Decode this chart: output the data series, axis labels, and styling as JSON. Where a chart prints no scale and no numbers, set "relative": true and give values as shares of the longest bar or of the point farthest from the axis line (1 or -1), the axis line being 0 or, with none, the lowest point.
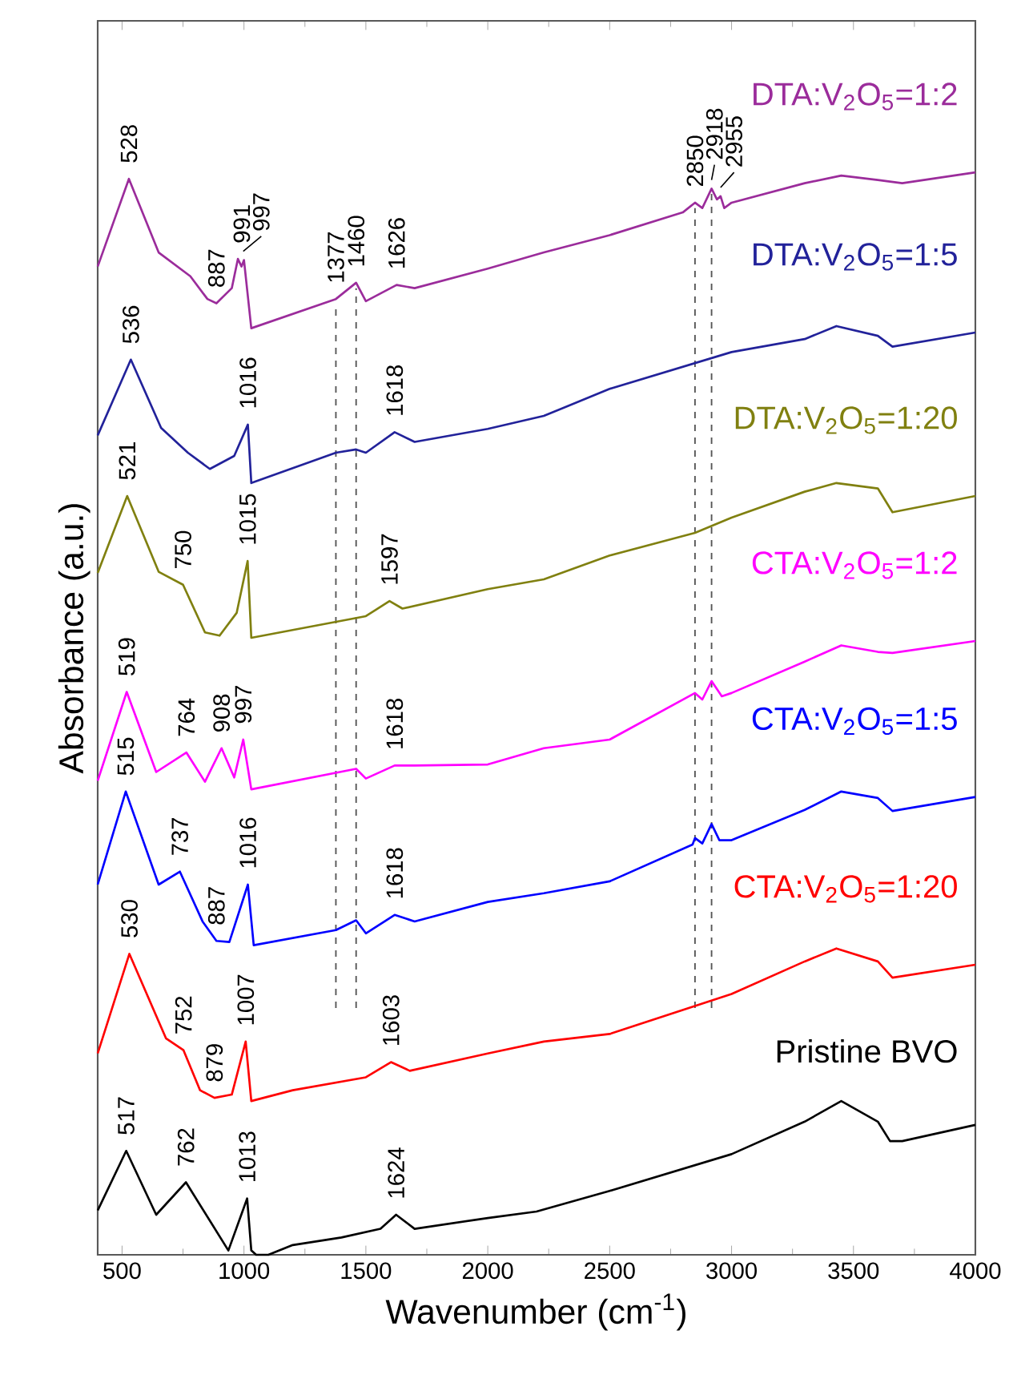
{
  "chart_data": {
    "type": "line",
    "relative": true,
    "xlabel": "Wavenumber (cm$^{-1}$)",
    "ylabel": "Absorbance (a.u.)",
    "xlim": [
      400,
      4000
    ],
    "xticks": [
      500,
      1000,
      1500,
      2000,
      2500,
      3000,
      3500,
      4000
    ],
    "series": [
      {
        "name": "DTA:V$_{2}$O$_{5}$=1:2",
        "color": "#9b2c9b",
        "x": [
          400,
          528,
          650,
          780,
          850,
          887,
          950,
          975,
          990,
          1000,
          1030,
          1377,
          1460,
          1500,
          1626,
          1700,
          2000,
          2230,
          2500,
          2800,
          2850,
          2880,
          2918,
          2940,
          2955,
          2970,
          3000,
          3300,
          3450,
          3600,
          3700,
          4000
        ],
        "values": [
          0.913,
          0.994,
          0.926,
          0.904,
          0.883,
          0.879,
          0.893,
          0.92,
          0.913,
          0.919,
          0.856,
          0.883,
          0.898,
          0.881,
          0.896,
          0.893,
          0.911,
          0.926,
          0.942,
          0.963,
          0.972,
          0.967,
          0.985,
          0.975,
          0.978,
          0.967,
          0.972,
          0.99,
          0.997,
          0.993,
          0.99,
          1.0
        ]
      },
      {
        "name": "DTA:V$_{2}$O$_{5}$=1:5",
        "color": "#22229a",
        "x": [
          400,
          536,
          660,
          770,
          860,
          960,
          1016,
          1030,
          1377,
          1460,
          1500,
          1618,
          1700,
          2000,
          2230,
          2500,
          3000,
          3300,
          3430,
          3600,
          3660,
          4000
        ],
        "values": [
          0.757,
          0.827,
          0.764,
          0.741,
          0.726,
          0.738,
          0.767,
          0.713,
          0.741,
          0.744,
          0.741,
          0.76,
          0.751,
          0.763,
          0.775,
          0.8,
          0.834,
          0.846,
          0.858,
          0.849,
          0.839,
          0.852
        ]
      },
      {
        "name": "DTA:V$_{2}$O$_{5}$=1:20",
        "color": "#808010",
        "x": [
          400,
          521,
          650,
          750,
          840,
          900,
          970,
          1015,
          1030,
          1500,
          1597,
          1650,
          2000,
          2230,
          2500,
          2850,
          3000,
          3300,
          3430,
          3600,
          3660,
          4000
        ],
        "values": [
          0.63,
          0.701,
          0.631,
          0.619,
          0.575,
          0.572,
          0.593,
          0.641,
          0.57,
          0.59,
          0.604,
          0.597,
          0.615,
          0.624,
          0.646,
          0.667,
          0.681,
          0.705,
          0.713,
          0.708,
          0.686,
          0.701
        ]
      },
      {
        "name": "CTA:V$_{2}$O$_{5}$=1:2",
        "color": "#ff00ff",
        "x": [
          400,
          519,
          640,
          764,
          840,
          908,
          960,
          997,
          1030,
          1460,
          1500,
          1618,
          1700,
          2000,
          2230,
          2500,
          2850,
          2880,
          2918,
          2960,
          3000,
          3300,
          3450,
          3600,
          3660,
          4000
        ],
        "values": [
          0.438,
          0.52,
          0.446,
          0.464,
          0.437,
          0.468,
          0.441,
          0.476,
          0.43,
          0.449,
          0.44,
          0.452,
          0.452,
          0.453,
          0.468,
          0.476,
          0.519,
          0.513,
          0.53,
          0.516,
          0.519,
          0.548,
          0.563,
          0.557,
          0.556,
          0.567
        ]
      },
      {
        "name": "CTA:V$_{2}$O$_{5}$=1:5",
        "color": "#0000ff",
        "x": [
          400,
          515,
          650,
          737,
          830,
          887,
          940,
          1016,
          1040,
          1377,
          1460,
          1500,
          1618,
          1700,
          2000,
          2230,
          2500,
          2840,
          2850,
          2880,
          2918,
          2950,
          3000,
          3300,
          3450,
          3600,
          3660,
          4000
        ],
        "values": [
          0.342,
          0.428,
          0.342,
          0.354,
          0.308,
          0.29,
          0.289,
          0.342,
          0.286,
          0.3,
          0.309,
          0.297,
          0.314,
          0.308,
          0.326,
          0.334,
          0.345,
          0.379,
          0.385,
          0.38,
          0.398,
          0.383,
          0.383,
          0.411,
          0.428,
          0.422,
          0.41,
          0.423
        ]
      },
      {
        "name": "CTA:V$_{2}$O$_{5}$=1:20",
        "color": "#ff0000",
        "x": [
          400,
          530,
          680,
          752,
          820,
          879,
          950,
          1007,
          1030,
          1200,
          1500,
          1603,
          1680,
          2000,
          2230,
          2500,
          3000,
          3300,
          3430,
          3600,
          3660,
          4000
        ],
        "values": [
          0.186,
          0.278,
          0.2,
          0.189,
          0.152,
          0.145,
          0.148,
          0.197,
          0.142,
          0.152,
          0.164,
          0.178,
          0.17,
          0.186,
          0.197,
          0.204,
          0.241,
          0.271,
          0.283,
          0.271,
          0.256,
          0.268
        ]
      },
      {
        "name": "Pristine BVO",
        "color": "#000000",
        "x": [
          400,
          517,
          640,
          762,
          936,
          1013,
          1030,
          1050,
          1100,
          1200,
          1400,
          1560,
          1624,
          1700,
          2000,
          2200,
          2500,
          3000,
          3300,
          3450,
          3600,
          3650,
          3700,
          4000
        ],
        "values": [
          0.041,
          0.096,
          0.037,
          0.067,
          0.004,
          0.052,
          0.004,
          0.0,
          0.0,
          0.009,
          0.016,
          0.024,
          0.037,
          0.024,
          0.034,
          0.04,
          0.059,
          0.093,
          0.123,
          0.142,
          0.123,
          0.105,
          0.105,
          0.12
        ]
      }
    ],
    "ref_lines": [
      {
        "axis": "x",
        "value": 1377,
        "color": "#555555",
        "line_style": "dashed"
      },
      {
        "axis": "x",
        "value": 1460,
        "color": "#555555",
        "line_style": "dashed"
      },
      {
        "axis": "x",
        "value": 2850,
        "color": "#555555",
        "line_style": "dashed"
      },
      {
        "axis": "x",
        "value": 2918,
        "color": "#555555",
        "line_style": "dashed"
      }
    ],
    "annotations": [
      {
        "text": "528",
        "x": 528,
        "y": 0.994
      },
      {
        "text": "887",
        "x": 887,
        "y": 0.879
      },
      {
        "text": "991",
        "x": 991,
        "y": 0.92
      },
      {
        "text": "997",
        "x": 997,
        "y": 0.919
      },
      {
        "text": "1377",
        "x": 1377,
        "y": 0.883
      },
      {
        "text": "1460",
        "x": 1460,
        "y": 0.898
      },
      {
        "text": "1626",
        "x": 1626,
        "y": 0.896
      },
      {
        "text": "2850",
        "x": 2850,
        "y": 0.972
      },
      {
        "text": "2918",
        "x": 2918,
        "y": 0.985
      },
      {
        "text": "2955",
        "x": 2955,
        "y": 0.978
      },
      {
        "text": "536",
        "x": 536,
        "y": 0.827
      },
      {
        "text": "1016",
        "x": 1016,
        "y": 0.767
      },
      {
        "text": "1618",
        "x": 1618,
        "y": 0.76
      },
      {
        "text": "521",
        "x": 521,
        "y": 0.701
      },
      {
        "text": "750",
        "x": 750,
        "y": 0.619
      },
      {
        "text": "1015",
        "x": 1015,
        "y": 0.641
      },
      {
        "text": "1597",
        "x": 1597,
        "y": 0.604
      },
      {
        "text": "519",
        "x": 519,
        "y": 0.52
      },
      {
        "text": "764",
        "x": 764,
        "y": 0.464
      },
      {
        "text": "908",
        "x": 908,
        "y": 0.468
      },
      {
        "text": "997",
        "x": 997,
        "y": 0.476
      },
      {
        "text": "1618",
        "x": 1618,
        "y": 0.452
      },
      {
        "text": "515",
        "x": 515,
        "y": 0.428
      },
      {
        "text": "737",
        "x": 737,
        "y": 0.354
      },
      {
        "text": "887",
        "x": 887,
        "y": 0.29
      },
      {
        "text": "1016",
        "x": 1016,
        "y": 0.342
      },
      {
        "text": "1618",
        "x": 1618,
        "y": 0.314
      },
      {
        "text": "530",
        "x": 530,
        "y": 0.278
      },
      {
        "text": "752",
        "x": 752,
        "y": 0.189
      },
      {
        "text": "879",
        "x": 879,
        "y": 0.145
      },
      {
        "text": "1007",
        "x": 1007,
        "y": 0.197
      },
      {
        "text": "1603",
        "x": 1603,
        "y": 0.178
      },
      {
        "text": "517",
        "x": 517,
        "y": 0.096
      },
      {
        "text": "762",
        "x": 762,
        "y": 0.067
      },
      {
        "text": "1013",
        "x": 1013,
        "y": 0.052
      },
      {
        "text": "1624",
        "x": 1624,
        "y": 0.037
      }
    ]
  }
}
